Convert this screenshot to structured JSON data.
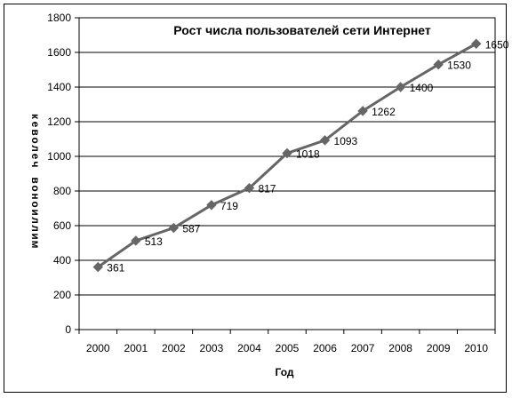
{
  "chart_data": {
    "type": "line",
    "title": "Рост числа пользователей  сети Интернет",
    "xlabel": "Год",
    "ylabel": "миллионов человек",
    "ylim": [
      0,
      1800
    ],
    "yticks": [
      0,
      200,
      400,
      600,
      800,
      1000,
      1200,
      1400,
      1600,
      1800
    ],
    "grid": true,
    "categories": [
      "2000",
      "2001",
      "2002",
      "2003",
      "2004",
      "2005",
      "2006",
      "2007",
      "2008",
      "2009",
      "2010"
    ],
    "series": [
      {
        "values": [
          361,
          513,
          587,
          719,
          817,
          1018,
          1093,
          1262,
          1400,
          1530,
          1650
        ],
        "color": "#666666"
      }
    ]
  }
}
